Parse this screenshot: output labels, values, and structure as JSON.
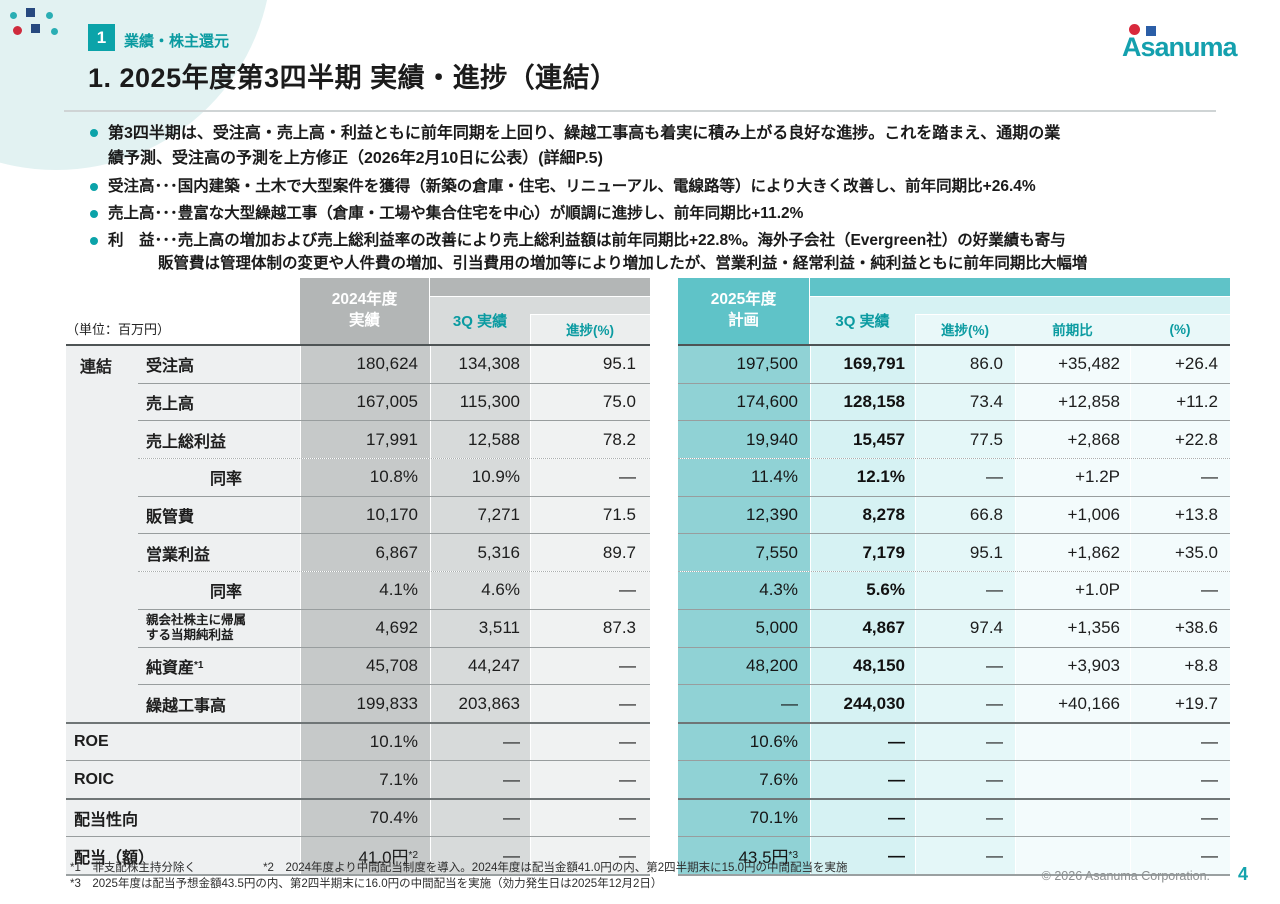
{
  "header": {
    "section_number": "1",
    "section_label": "業績・株主還元",
    "logo_text": "Asanuma",
    "title": "1. 2025年度第3四半期 実績・進捗（連結）"
  },
  "bullets": [
    {
      "lines": [
        "第3四半期は、受注高・売上高・利益ともに前年同期を上回り、繰越工事高も着実に積み上がる良好な進捗。これを踏まえ、通期の業",
        "績予測、受注高の予測を上方修正（2026年2月10日に公表）(詳細P.5)"
      ]
    },
    {
      "lines": [
        "受注高･･･国内建築・土木で大型案件を獲得（新築の倉庫・住宅、リニューアル、電線路等）により大きく改善し、前年同期比+26.4%"
      ]
    },
    {
      "lines": [
        "売上高･･･豊富な大型繰越工事（倉庫・工場や集合住宅を中心）が順調に進捗し、前年同期比+11.2%"
      ]
    },
    {
      "lines": [
        "利　益･･･売上高の増加および売上総利益率の改善により売上総利益額は前年同期比+22.8%。海外子会社（Evergreen社）の好業績も寄与",
        "販管費は管理体制の変更や人件費の増加、引当費用の増加等により増加したが、営業利益・経常利益・純利益ともに前年同期比大幅増"
      ]
    }
  ],
  "table": {
    "unit_label": "（単位：百万円）",
    "left": {
      "group_label": "連結",
      "head_fy": [
        "2024年度",
        "実績"
      ],
      "head_q3": "3Q 実績",
      "head_progress": "進捗(%)",
      "rows": [
        {
          "label": "受注高",
          "fy": "180,624",
          "q3": "134,308",
          "progress": "95.1"
        },
        {
          "label": "売上高",
          "fy": "167,005",
          "q3": "115,300",
          "progress": "75.0"
        },
        {
          "label": "売上総利益",
          "fy": "17,991",
          "q3": "12,588",
          "progress": "78.2"
        },
        {
          "label": "同率",
          "fy": "10.8%",
          "q3": "10.9%",
          "progress": "―",
          "indent": true,
          "dotted": true
        },
        {
          "label": "販管費",
          "fy": "10,170",
          "q3": "7,271",
          "progress": "71.5"
        },
        {
          "label": "営業利益",
          "fy": "6,867",
          "q3": "5,316",
          "progress": "89.7"
        },
        {
          "label": "同率",
          "fy": "4.1%",
          "q3": "4.6%",
          "progress": "―",
          "indent": true,
          "dotted": true
        },
        {
          "label": "親会社株主に帰属\nする当期純利益",
          "fy": "4,692",
          "q3": "3,511",
          "progress": "87.3",
          "small": true
        },
        {
          "label": "純資産",
          "label_sup": "*1",
          "fy": "45,708",
          "q3": "44,247",
          "progress": "―"
        },
        {
          "label": "繰越工事高",
          "fy": "199,833",
          "q3": "203,863",
          "progress": "―"
        }
      ],
      "bottom_rows": [
        {
          "label": "ROE",
          "fy": "10.1%",
          "q3": "―",
          "progress": "―"
        },
        {
          "label": "ROIC",
          "fy": "7.1%",
          "q3": "―",
          "progress": "―"
        },
        {
          "label": "配当性向",
          "fy": "70.4%",
          "q3": "―",
          "progress": "―",
          "thick": true
        },
        {
          "label": "配当（額）",
          "fy": "41.0円",
          "fy_sup": "*2",
          "q3": "―",
          "progress": "―"
        }
      ]
    },
    "right": {
      "head_plan": [
        "2025年度",
        "計画"
      ],
      "head_q3": "3Q 実績",
      "head_progress": "進捗(%)",
      "head_yoy": "前期比",
      "head_pct": "(%)",
      "rows": [
        {
          "plan": "197,500",
          "q3": "169,791",
          "progress": "86.0",
          "yoy": "+35,482",
          "pct": "+26.4"
        },
        {
          "plan": "174,600",
          "q3": "128,158",
          "progress": "73.4",
          "yoy": "+12,858",
          "pct": "+11.2"
        },
        {
          "plan": "19,940",
          "q3": "15,457",
          "progress": "77.5",
          "yoy": "+2,868",
          "pct": "+22.8"
        },
        {
          "plan": "11.4%",
          "q3": "12.1%",
          "progress": "―",
          "yoy": "+1.2P",
          "pct": "―",
          "dotted": true
        },
        {
          "plan": "12,390",
          "q3": "8,278",
          "progress": "66.8",
          "yoy": "+1,006",
          "pct": "+13.8"
        },
        {
          "plan": "7,550",
          "q3": "7,179",
          "progress": "95.1",
          "yoy": "+1,862",
          "pct": "+35.0"
        },
        {
          "plan": "4.3%",
          "q3": "5.6%",
          "progress": "―",
          "yoy": "+1.0P",
          "pct": "―",
          "dotted": true
        },
        {
          "plan": "5,000",
          "q3": "4,867",
          "progress": "97.4",
          "yoy": "+1,356",
          "pct": "+38.6"
        },
        {
          "plan": "48,200",
          "q3": "48,150",
          "progress": "―",
          "yoy": "+3,903",
          "pct": "+8.8"
        },
        {
          "plan": "―",
          "q3": "244,030",
          "progress": "―",
          "yoy": "+40,166",
          "pct": "+19.7"
        }
      ],
      "bottom_rows": [
        {
          "plan": "10.6%",
          "q3": "―",
          "progress": "―",
          "yoy": "",
          "pct": "―"
        },
        {
          "plan": "7.6%",
          "q3": "―",
          "progress": "―",
          "yoy": "",
          "pct": "―"
        },
        {
          "plan": "70.1%",
          "q3": "―",
          "progress": "―",
          "yoy": "",
          "pct": "―",
          "thick": true
        },
        {
          "plan": "43.5円",
          "plan_sup": "*3",
          "q3": "―",
          "progress": "―",
          "yoy": "",
          "pct": "―"
        }
      ]
    }
  },
  "footnotes": [
    "*1　非支配株主持分除く",
    "*2　2024年度より中間配当制度を導入。2024年度は配当金額41.0円の内、第2四半期末に15.0円の中間配当を実施",
    "*3　2025年度は配当予想金額43.5円の内、第2四半期末に16.0円の中間配当を実施（効力発生日は2025年12月2日）"
  ],
  "footer": {
    "copyright": "© 2026 Asanuma Corporation.",
    "page_number": "4"
  },
  "colors": {
    "accent_teal": "#0ba3a9",
    "teal_header": "#5fc3c8",
    "teal_plan_cell": "#90d2d5",
    "gray_header": "#b3b6b6",
    "logo_teal": "#14a0ae",
    "logo_red": "#d8293c",
    "logo_blue": "#2b5ea7"
  }
}
